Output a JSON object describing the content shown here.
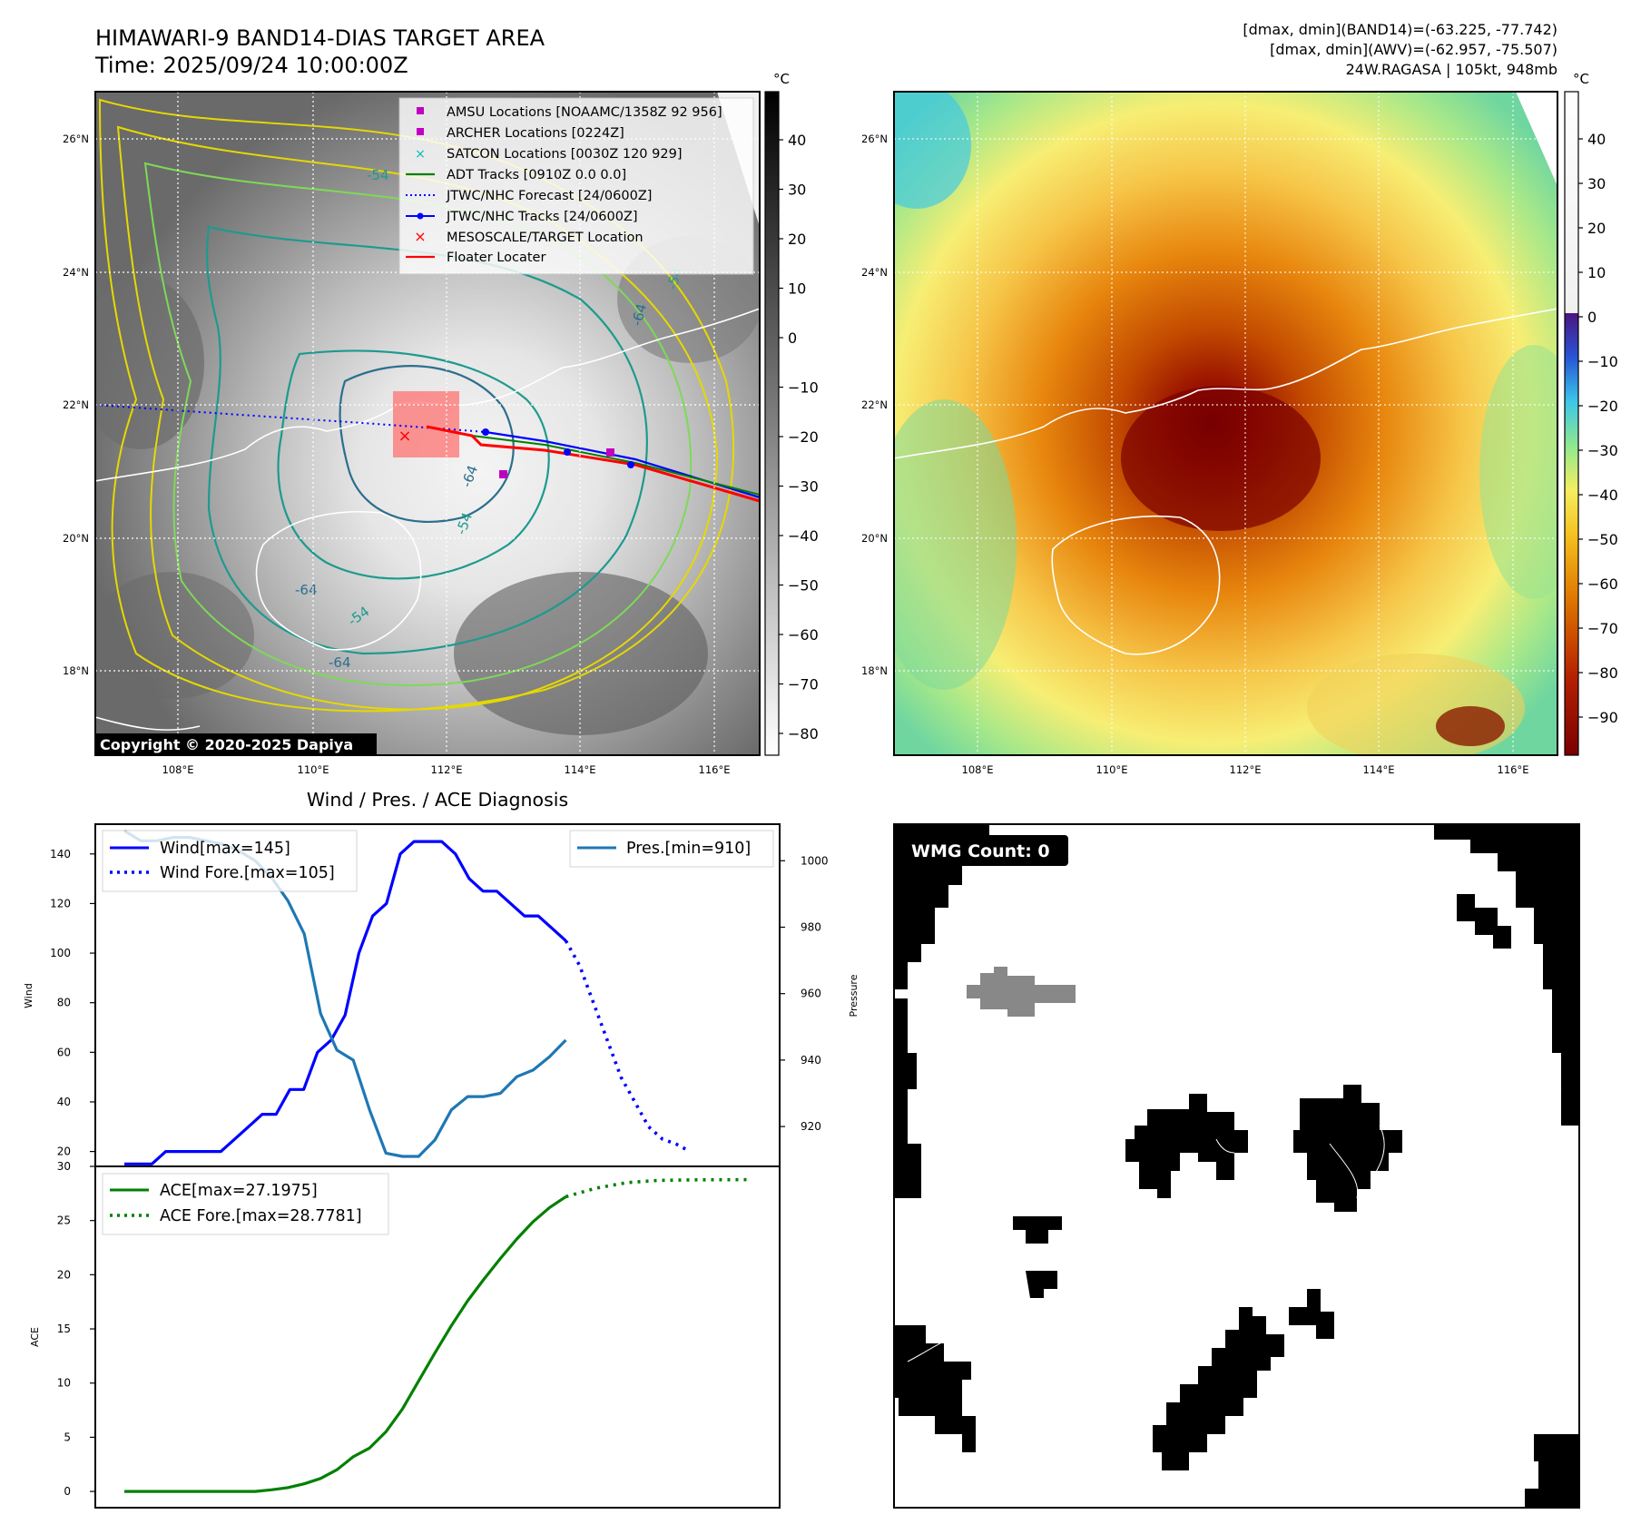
{
  "header": {
    "title": "HIMAWARI-9 BAND14-DIAS TARGET AREA",
    "time": "Time: 2025/09/24 10:00:00Z",
    "stat1": "[dmax, dmin](BAND14)=(-63.225, -77.742)",
    "stat2": "[dmax, dmin](AWV)=(-62.957, -75.507)",
    "storm": "24W.RAGASA | 105kt, 948mb"
  },
  "map": {
    "lat_ticks": [
      "26°N",
      "24°N",
      "22°N",
      "20°N",
      "18°N"
    ],
    "lon_ticks": [
      "108°E",
      "110°E",
      "112°E",
      "114°E",
      "116°E"
    ],
    "copyright": "Copyright © 2020-2025 Dapiya",
    "contour_labels": [
      "-54",
      "-64",
      "-54",
      "-64",
      "-54",
      "-64",
      "-54",
      "-64"
    ],
    "legend": [
      {
        "label": "AMSU Locations [NOAAMC/1358Z 92 956]",
        "color": "#c000c0"
      },
      {
        "label": "ARCHER Locations [0224Z]",
        "color": "#c000c0"
      },
      {
        "label": "SATCON Locations [0030Z 120 929]",
        "color": "#00bcbc"
      },
      {
        "label": "ADT Tracks [0910Z 0.0 0.0]",
        "color": "#008000"
      },
      {
        "label": "JTWC/NHC Forecast [24/0600Z]",
        "color": "#0000ff"
      },
      {
        "label": "JTWC/NHC Tracks [24/0600Z]",
        "color": "#0000ff"
      },
      {
        "label": "MESOSCALE/TARGET Location",
        "color": "#ff0000"
      },
      {
        "label": "Floater Locater",
        "color": "#ff0000"
      }
    ]
  },
  "colorbar_left": {
    "unit": "°C",
    "ticks": [
      "40",
      "30",
      "20",
      "10",
      "0",
      "−10",
      "−20",
      "−30",
      "−40",
      "−50",
      "−60",
      "−70",
      "−80"
    ]
  },
  "colorbar_right": {
    "unit": "°C",
    "ticks": [
      "40",
      "30",
      "20",
      "10",
      "0",
      "−10",
      "−20",
      "−30",
      "−40",
      "−50",
      "−60",
      "−70",
      "−80",
      "−90"
    ]
  },
  "wmg": {
    "label": "WMG Count: 0"
  },
  "chart_data": [
    {
      "type": "line",
      "title": "Wind / Pres. / ACE Diagnosis",
      "ylabel": "Wind",
      "y2label": "Pressure",
      "ylim": [
        14,
        152
      ],
      "y2lim": [
        908,
        1011
      ],
      "yticks": [
        "140",
        "120",
        "100",
        "80",
        "60",
        "40",
        "20"
      ],
      "y2ticks": [
        "1000",
        "980",
        "960",
        "940",
        "920"
      ],
      "series": [
        {
          "name": "Wind[max=145]",
          "color": "#0000ff",
          "style": "solid",
          "values": [
            15,
            15,
            15,
            20,
            20,
            20,
            20,
            20,
            25,
            30,
            35,
            35,
            45,
            45,
            60,
            65,
            75,
            100,
            115,
            120,
            140,
            145,
            145,
            145,
            140,
            130,
            125,
            125,
            120,
            115,
            115,
            110,
            105
          ]
        },
        {
          "name": "Wind Fore.[max=105]",
          "color": "#0000ff",
          "style": "dotted",
          "values": [
            105,
            95,
            80,
            65,
            50,
            40,
            30,
            25,
            23,
            20
          ]
        },
        {
          "name": "Pres.[min=910]",
          "color": "#1f77b4",
          "style": "solid",
          "axis": "right",
          "values": [
            1009,
            1006,
            1006,
            1007,
            1007,
            1006,
            1005,
            1003,
            1000,
            995,
            988,
            978,
            954,
            943,
            940,
            925,
            912,
            911,
            911,
            916,
            925,
            929,
            929,
            930,
            935,
            937,
            941,
            946
          ]
        }
      ]
    },
    {
      "type": "line",
      "ylabel": "ACE",
      "ylim": [
        -1.5,
        30
      ],
      "yticks": [
        "30",
        "25",
        "20",
        "15",
        "10",
        "5",
        "0"
      ],
      "series": [
        {
          "name": "ACE[max=27.1975]",
          "color": "#008000",
          "style": "solid",
          "values": [
            0,
            0,
            0,
            0,
            0,
            0,
            0,
            0,
            0,
            0.15,
            0.35,
            0.7,
            1.2,
            2.0,
            3.2,
            4.0,
            5.5,
            7.6,
            10.2,
            12.8,
            15.3,
            17.6,
            19.6,
            21.5,
            23.3,
            24.9,
            26.2,
            27.2
          ]
        },
        {
          "name": "ACE Fore.[max=28.7781]",
          "color": "#008000",
          "style": "dotted",
          "values": [
            27.2,
            28.0,
            28.5,
            28.7,
            28.75,
            28.77,
            28.78
          ]
        }
      ]
    }
  ]
}
